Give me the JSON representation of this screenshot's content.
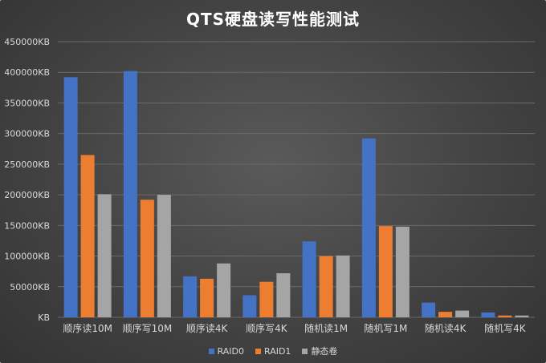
{
  "chart_data": {
    "type": "bar",
    "title": "QTS硬盘读写性能测试",
    "categories": [
      "顺序读10M",
      "顺序写10M",
      "顺序读4K",
      "顺序写4K",
      "随机读1M",
      "随机写1M",
      "随机读4K",
      "随机写4K"
    ],
    "yticks": [
      "KB",
      "50000KB",
      "100000KB",
      "150000KB",
      "200000KB",
      "250000KB",
      "300000KB",
      "350000KB",
      "400000KB",
      "450000KB"
    ],
    "ylim": [
      0,
      450000
    ],
    "grid": true,
    "legend_position": "bottom",
    "series": [
      {
        "name": "RAID0",
        "color": "#4472C4",
        "values": [
          392000,
          402000,
          67000,
          36000,
          124000,
          292000,
          24000,
          8000
        ]
      },
      {
        "name": "RAID1",
        "color": "#ED7D31",
        "values": [
          265000,
          192000,
          63000,
          58000,
          100000,
          149000,
          9000,
          3000
        ]
      },
      {
        "name": "静态卷",
        "color": "#A5A5A5",
        "values": [
          201000,
          200000,
          88000,
          72000,
          101000,
          148000,
          11000,
          3000
        ]
      }
    ]
  }
}
